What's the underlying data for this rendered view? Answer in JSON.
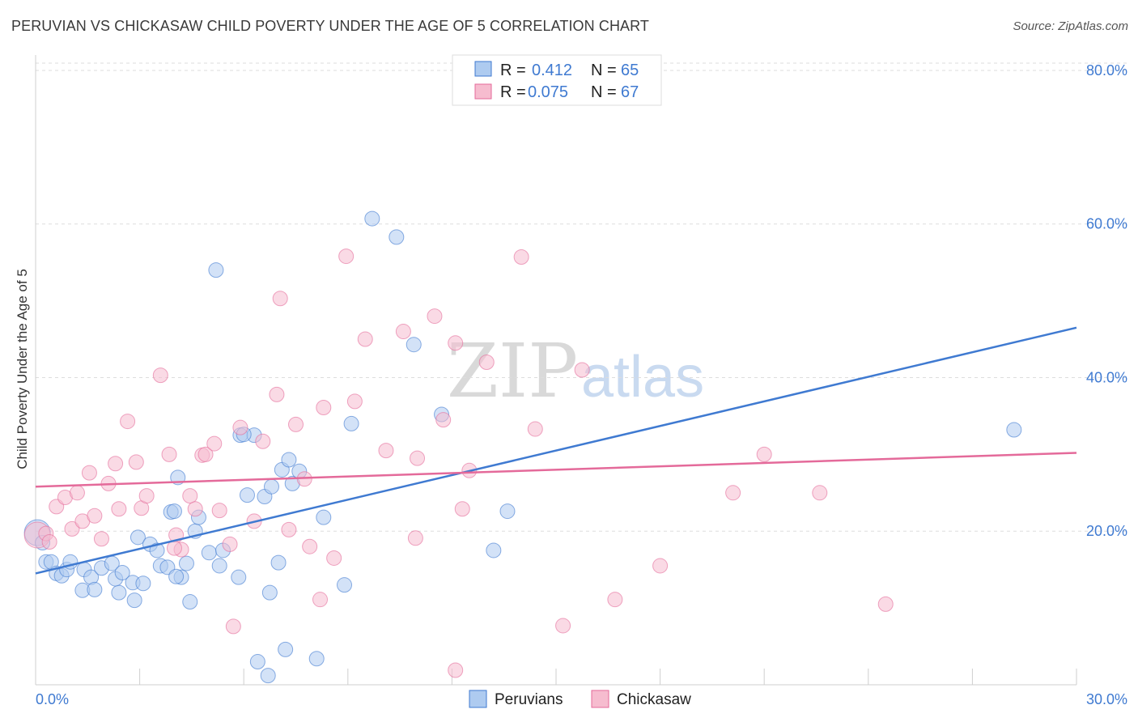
{
  "title": "PERUVIAN VS CHICKASAW CHILD POVERTY UNDER THE AGE OF 5 CORRELATION CHART",
  "source": "Source: ZipAtlas.com",
  "watermark": {
    "zip": "ZIP",
    "atlas": "atlas"
  },
  "colors": {
    "blue": "#3f7ad1",
    "blue_fill": "#aecbf0",
    "pink": "#e46a9a",
    "pink_fill": "#f6bccf",
    "grid": "#dddddd"
  },
  "legend": {
    "rows": [
      {
        "r_label": "R =",
        "r_value": "0.412",
        "n_label": "N =",
        "n_value": "65"
      },
      {
        "r_label": "R =",
        "r_value": "0.075",
        "n_label": "N =",
        "n_value": "67"
      }
    ]
  },
  "chart_data": {
    "type": "scatter",
    "title": "PERUVIAN VS CHICKASAW CHILD POVERTY UNDER THE AGE OF 5 CORRELATION CHART",
    "xlabel": "",
    "ylabel": "Child Poverty Under the Age of 5",
    "xlim": [
      0,
      30
    ],
    "ylim": [
      0,
      82
    ],
    "x_tick_labels": [
      "0.0%",
      "30.0%"
    ],
    "y_ticks": [
      20,
      40,
      60,
      80
    ],
    "y_tick_labels": [
      "20.0%",
      "40.0%",
      "60.0%",
      "80.0%"
    ],
    "grid": true,
    "legend_position": "top-center",
    "series": [
      {
        "name": "Peruvians",
        "color": "#3f7ad1",
        "trend": {
          "x": [
            0,
            30
          ],
          "y": [
            14.5,
            46.5
          ]
        },
        "points": [
          [
            0.05,
            19.8
          ],
          [
            0.2,
            18.5
          ],
          [
            0.3,
            16
          ],
          [
            0.45,
            16
          ],
          [
            0.6,
            14.5
          ],
          [
            0.75,
            14.2
          ],
          [
            0.9,
            15
          ],
          [
            1.0,
            16
          ],
          [
            1.4,
            15
          ],
          [
            1.6,
            14
          ],
          [
            1.9,
            15.2
          ],
          [
            2.2,
            15.8
          ],
          [
            2.4,
            12
          ],
          [
            1.35,
            12.3
          ],
          [
            1.7,
            12.4
          ],
          [
            2.3,
            13.8
          ],
          [
            2.5,
            14.6
          ],
          [
            2.8,
            13.3
          ],
          [
            3.1,
            13.2
          ],
          [
            2.95,
            19.2
          ],
          [
            3.3,
            18.3
          ],
          [
            3.5,
            17.5
          ],
          [
            3.6,
            15.5
          ],
          [
            3.9,
            22.5
          ],
          [
            4.0,
            22.6
          ],
          [
            4.2,
            14
          ],
          [
            4.45,
            10.8
          ],
          [
            4.6,
            20
          ],
          [
            4.1,
            27
          ],
          [
            4.7,
            21.8
          ],
          [
            4.35,
            15.8
          ],
          [
            5.0,
            17.2
          ],
          [
            5.3,
            15.5
          ],
          [
            5.85,
            14
          ],
          [
            2.85,
            11
          ],
          [
            5.2,
            54
          ],
          [
            5.9,
            32.5
          ],
          [
            6.3,
            32.5
          ],
          [
            6.6,
            24.5
          ],
          [
            6.1,
            24.7
          ],
          [
            6.8,
            25.8
          ],
          [
            7.1,
            28
          ],
          [
            7.4,
            26.2
          ],
          [
            7.3,
            29.3
          ],
          [
            7.6,
            27.8
          ],
          [
            8.3,
            21.8
          ],
          [
            9.1,
            34
          ],
          [
            9.7,
            60.7
          ],
          [
            10.4,
            58.3
          ],
          [
            10.9,
            44.3
          ],
          [
            11.7,
            35.2
          ],
          [
            7.0,
            15.9
          ],
          [
            6.75,
            12
          ],
          [
            8.9,
            13
          ],
          [
            13.2,
            17.5
          ],
          [
            13.6,
            22.6
          ],
          [
            6.4,
            3
          ],
          [
            6.7,
            1.2
          ],
          [
            7.2,
            4.6
          ],
          [
            8.1,
            3.4
          ],
          [
            28.2,
            33.2
          ],
          [
            6.0,
            32.6
          ],
          [
            5.4,
            17.5
          ],
          [
            3.8,
            15.3
          ],
          [
            4.05,
            14.1
          ]
        ]
      },
      {
        "name": "Chickasaw",
        "color": "#e46a9a",
        "trend": {
          "x": [
            0,
            30
          ],
          "y": [
            25.8,
            30.2
          ]
        },
        "points": [
          [
            0.05,
            19.5
          ],
          [
            0.3,
            19.7
          ],
          [
            0.6,
            23.2
          ],
          [
            0.85,
            24.4
          ],
          [
            1.05,
            20.3
          ],
          [
            1.2,
            25
          ],
          [
            1.35,
            21.3
          ],
          [
            1.55,
            27.6
          ],
          [
            1.7,
            22
          ],
          [
            1.9,
            19
          ],
          [
            2.1,
            26.2
          ],
          [
            2.4,
            22.9
          ],
          [
            2.65,
            34.3
          ],
          [
            2.9,
            29
          ],
          [
            3.05,
            23
          ],
          [
            3.2,
            24.6
          ],
          [
            3.6,
            40.3
          ],
          [
            3.85,
            30
          ],
          [
            4.05,
            19.5
          ],
          [
            4.2,
            17.6
          ],
          [
            4.45,
            24.6
          ],
          [
            4.6,
            22.9
          ],
          [
            4.8,
            29.9
          ],
          [
            4.9,
            30
          ],
          [
            5.15,
            31.4
          ],
          [
            5.3,
            22.7
          ],
          [
            5.6,
            18.3
          ],
          [
            5.7,
            7.6
          ],
          [
            5.9,
            33.5
          ],
          [
            6.3,
            21.3
          ],
          [
            6.55,
            31.7
          ],
          [
            6.95,
            37.8
          ],
          [
            7.05,
            50.3
          ],
          [
            7.3,
            20.2
          ],
          [
            7.5,
            33.9
          ],
          [
            7.75,
            26.8
          ],
          [
            7.9,
            18
          ],
          [
            8.2,
            11.1
          ],
          [
            8.3,
            36.1
          ],
          [
            8.6,
            16.5
          ],
          [
            8.95,
            55.8
          ],
          [
            9.2,
            36.9
          ],
          [
            9.5,
            45
          ],
          [
            10.1,
            30.5
          ],
          [
            10.6,
            46
          ],
          [
            10.95,
            19.1
          ],
          [
            11.0,
            29.5
          ],
          [
            11.5,
            48
          ],
          [
            11.75,
            34.5
          ],
          [
            12.1,
            44.5
          ],
          [
            12.3,
            22.9
          ],
          [
            12.5,
            27.9
          ],
          [
            13.0,
            42
          ],
          [
            14.0,
            55.7
          ],
          [
            14.4,
            33.3
          ],
          [
            15.2,
            7.7
          ],
          [
            15.75,
            41
          ],
          [
            16.7,
            11.1
          ],
          [
            18.0,
            15.5
          ],
          [
            20.1,
            25
          ],
          [
            21.0,
            30
          ],
          [
            22.6,
            25
          ],
          [
            24.5,
            10.5
          ],
          [
            12.1,
            1.9
          ],
          [
            4.0,
            17.8
          ],
          [
            2.3,
            28.8
          ],
          [
            0.4,
            18.6
          ]
        ]
      }
    ]
  },
  "bottom_legend": [
    {
      "label": "Peruvians"
    },
    {
      "label": "Chickasaw"
    }
  ]
}
